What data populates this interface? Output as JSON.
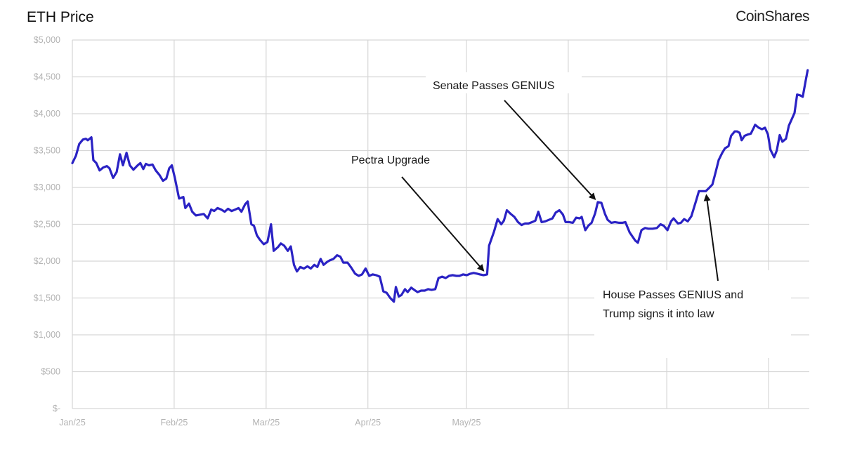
{
  "chart_data": {
    "type": "line",
    "title": "ETH Price",
    "brand": "CoinShares",
    "xlabel": "",
    "ylabel": "",
    "x_unit": "days since Jan 1 2025",
    "xlim": [
      0,
      224.4
    ],
    "ylim": [
      0,
      5000
    ],
    "grid": true,
    "line_color": "#2a22c4",
    "y_ticks": [
      {
        "value": 0,
        "label": "$-"
      },
      {
        "value": 500,
        "label": "$500"
      },
      {
        "value": 1000,
        "label": "$1,000"
      },
      {
        "value": 1500,
        "label": "$1,500"
      },
      {
        "value": 2000,
        "label": "$2,000"
      },
      {
        "value": 2500,
        "label": "$2,500"
      },
      {
        "value": 3000,
        "label": "$3,000"
      },
      {
        "value": 3500,
        "label": "$3,500"
      },
      {
        "value": 4000,
        "label": "$4,000"
      },
      {
        "value": 4500,
        "label": "$4,500"
      },
      {
        "value": 5000,
        "label": "$5,000"
      }
    ],
    "x_ticks": [
      {
        "value": 0,
        "label": "Jan/25"
      },
      {
        "value": 31,
        "label": "Feb/25"
      },
      {
        "value": 59,
        "label": "Mar/25"
      },
      {
        "value": 90,
        "label": "Apr/25"
      },
      {
        "value": 120,
        "label": "May/25"
      },
      {
        "value": 151,
        "label": ""
      },
      {
        "value": 181,
        "label": ""
      },
      {
        "value": 212,
        "label": ""
      }
    ],
    "series": [
      {
        "name": "ETH Price",
        "points": [
          [
            0,
            3330
          ],
          [
            1.1,
            3430
          ],
          [
            2.1,
            3590
          ],
          [
            3.2,
            3650
          ],
          [
            4.1,
            3660
          ],
          [
            4.7,
            3640
          ],
          [
            5.8,
            3680
          ],
          [
            6.4,
            3370
          ],
          [
            7.3,
            3330
          ],
          [
            8.3,
            3230
          ],
          [
            9.4,
            3270
          ],
          [
            10.5,
            3290
          ],
          [
            11.3,
            3260
          ],
          [
            12.4,
            3130
          ],
          [
            13.5,
            3210
          ],
          [
            14.5,
            3450
          ],
          [
            15.4,
            3300
          ],
          [
            16.5,
            3470
          ],
          [
            17.5,
            3300
          ],
          [
            18.6,
            3240
          ],
          [
            19.9,
            3300
          ],
          [
            20.7,
            3330
          ],
          [
            21.6,
            3250
          ],
          [
            22.4,
            3320
          ],
          [
            23.3,
            3300
          ],
          [
            24.4,
            3310
          ],
          [
            25.4,
            3230
          ],
          [
            26.5,
            3170
          ],
          [
            27.6,
            3090
          ],
          [
            28.6,
            3120
          ],
          [
            29.5,
            3260
          ],
          [
            30.3,
            3300
          ],
          [
            31.2,
            3130
          ],
          [
            32.5,
            2850
          ],
          [
            33.8,
            2870
          ],
          [
            34.4,
            2720
          ],
          [
            35.5,
            2780
          ],
          [
            36.5,
            2670
          ],
          [
            37.6,
            2620
          ],
          [
            38.9,
            2630
          ],
          [
            40.0,
            2640
          ],
          [
            41.2,
            2580
          ],
          [
            42.3,
            2700
          ],
          [
            43.2,
            2680
          ],
          [
            44.2,
            2720
          ],
          [
            45.3,
            2700
          ],
          [
            46.4,
            2670
          ],
          [
            47.4,
            2710
          ],
          [
            48.5,
            2680
          ],
          [
            49.6,
            2700
          ],
          [
            50.6,
            2720
          ],
          [
            51.5,
            2670
          ],
          [
            52.6,
            2770
          ],
          [
            53.4,
            2810
          ],
          [
            54.5,
            2500
          ],
          [
            55.3,
            2480
          ],
          [
            56.2,
            2350
          ],
          [
            57.1,
            2290
          ],
          [
            58.3,
            2230
          ],
          [
            59.4,
            2260
          ],
          [
            60.5,
            2500
          ],
          [
            61.3,
            2140
          ],
          [
            62.6,
            2190
          ],
          [
            63.5,
            2240
          ],
          [
            64.5,
            2210
          ],
          [
            65.6,
            2140
          ],
          [
            66.5,
            2200
          ],
          [
            67.5,
            1950
          ],
          [
            68.4,
            1860
          ],
          [
            69.4,
            1920
          ],
          [
            70.5,
            1900
          ],
          [
            71.6,
            1930
          ],
          [
            72.6,
            1900
          ],
          [
            73.7,
            1950
          ],
          [
            74.6,
            1920
          ],
          [
            75.6,
            2030
          ],
          [
            76.5,
            1950
          ],
          [
            77.6,
            1990
          ],
          [
            78.4,
            2010
          ],
          [
            79.5,
            2030
          ],
          [
            80.6,
            2080
          ],
          [
            81.6,
            2060
          ],
          [
            82.5,
            1980
          ],
          [
            83.8,
            1980
          ],
          [
            84.8,
            1920
          ],
          [
            86.1,
            1830
          ],
          [
            87.2,
            1800
          ],
          [
            88.2,
            1820
          ],
          [
            89.3,
            1900
          ],
          [
            90.4,
            1800
          ],
          [
            91.5,
            1820
          ],
          [
            92.5,
            1810
          ],
          [
            93.6,
            1790
          ],
          [
            94.7,
            1590
          ],
          [
            95.7,
            1570
          ],
          [
            96.8,
            1500
          ],
          [
            97.9,
            1450
          ],
          [
            98.5,
            1650
          ],
          [
            99.4,
            1520
          ],
          [
            100.2,
            1540
          ],
          [
            101.3,
            1620
          ],
          [
            102.1,
            1580
          ],
          [
            103.2,
            1640
          ],
          [
            104.1,
            1610
          ],
          [
            105.1,
            1580
          ],
          [
            106.2,
            1600
          ],
          [
            107.3,
            1600
          ],
          [
            108.3,
            1620
          ],
          [
            109.4,
            1610
          ],
          [
            110.5,
            1620
          ],
          [
            111.5,
            1770
          ],
          [
            112.6,
            1790
          ],
          [
            113.7,
            1770
          ],
          [
            114.7,
            1800
          ],
          [
            115.8,
            1810
          ],
          [
            116.9,
            1800
          ],
          [
            117.9,
            1800
          ],
          [
            119.0,
            1820
          ],
          [
            120.1,
            1810
          ],
          [
            121.2,
            1830
          ],
          [
            122.2,
            1840
          ],
          [
            123.3,
            1830
          ],
          [
            124.1,
            1820
          ],
          [
            125.2,
            1810
          ],
          [
            126.3,
            1820
          ],
          [
            126.9,
            2210
          ],
          [
            128.4,
            2400
          ],
          [
            129.5,
            2570
          ],
          [
            130.6,
            2500
          ],
          [
            131.4,
            2550
          ],
          [
            132.3,
            2690
          ],
          [
            133.5,
            2640
          ],
          [
            134.6,
            2600
          ],
          [
            135.7,
            2530
          ],
          [
            136.8,
            2490
          ],
          [
            137.8,
            2510
          ],
          [
            138.9,
            2510
          ],
          [
            140.0,
            2530
          ],
          [
            141.0,
            2550
          ],
          [
            141.9,
            2670
          ],
          [
            142.9,
            2530
          ],
          [
            144.0,
            2540
          ],
          [
            145.1,
            2560
          ],
          [
            146.2,
            2580
          ],
          [
            147.2,
            2660
          ],
          [
            148.3,
            2690
          ],
          [
            149.4,
            2630
          ],
          [
            150.2,
            2530
          ],
          [
            151.3,
            2530
          ],
          [
            152.4,
            2520
          ],
          [
            153.4,
            2590
          ],
          [
            154.5,
            2580
          ],
          [
            155.1,
            2600
          ],
          [
            156.2,
            2420
          ],
          [
            157.1,
            2480
          ],
          [
            158.1,
            2520
          ],
          [
            159.2,
            2650
          ],
          [
            160.0,
            2800
          ],
          [
            161.1,
            2790
          ],
          [
            162.2,
            2640
          ],
          [
            163.0,
            2560
          ],
          [
            164.1,
            2520
          ],
          [
            165.2,
            2530
          ],
          [
            166.5,
            2520
          ],
          [
            167.5,
            2520
          ],
          [
            168.4,
            2530
          ],
          [
            169.7,
            2390
          ],
          [
            171.4,
            2280
          ],
          [
            172.2,
            2250
          ],
          [
            173.3,
            2420
          ],
          [
            174.4,
            2450
          ],
          [
            175.4,
            2440
          ],
          [
            176.7,
            2440
          ],
          [
            178.0,
            2450
          ],
          [
            179.1,
            2500
          ],
          [
            180.1,
            2480
          ],
          [
            181.2,
            2420
          ],
          [
            182.3,
            2540
          ],
          [
            183.1,
            2580
          ],
          [
            184.4,
            2510
          ],
          [
            185.3,
            2520
          ],
          [
            186.3,
            2570
          ],
          [
            187.4,
            2540
          ],
          [
            188.5,
            2610
          ],
          [
            190.0,
            2830
          ],
          [
            190.8,
            2950
          ],
          [
            191.9,
            2950
          ],
          [
            192.9,
            2950
          ],
          [
            193.8,
            2990
          ],
          [
            194.9,
            3040
          ],
          [
            195.9,
            3210
          ],
          [
            196.8,
            3370
          ],
          [
            197.9,
            3470
          ],
          [
            198.7,
            3530
          ],
          [
            199.8,
            3560
          ],
          [
            200.6,
            3700
          ],
          [
            201.7,
            3760
          ],
          [
            202.4,
            3760
          ],
          [
            203.2,
            3740
          ],
          [
            203.8,
            3640
          ],
          [
            204.7,
            3700
          ],
          [
            205.8,
            3720
          ],
          [
            206.6,
            3730
          ],
          [
            207.5,
            3810
          ],
          [
            207.9,
            3850
          ],
          [
            209.0,
            3810
          ],
          [
            210.0,
            3790
          ],
          [
            210.9,
            3810
          ],
          [
            211.8,
            3720
          ],
          [
            212.6,
            3510
          ],
          [
            213.7,
            3410
          ],
          [
            214.5,
            3500
          ],
          [
            215.4,
            3710
          ],
          [
            216.2,
            3620
          ],
          [
            217.3,
            3660
          ],
          [
            218.2,
            3840
          ],
          [
            219.0,
            3920
          ],
          [
            219.9,
            4010
          ],
          [
            220.7,
            4260
          ],
          [
            221.6,
            4250
          ],
          [
            222.4,
            4230
          ],
          [
            223.3,
            4450
          ],
          [
            223.9,
            4590
          ]
        ]
      }
    ],
    "annotations": [
      {
        "text": "Pectra Upgrade",
        "lines": [
          "Pectra Upgrade"
        ],
        "target": [
          126.0,
          1830
        ]
      },
      {
        "text": "Senate Passes GENIUS",
        "lines": [
          "Senate Passes GENIUS"
        ],
        "target": [
          160.0,
          2800
        ]
      },
      {
        "text": "House Passes GENIUS and Trump signs it into law",
        "lines": [
          "House Passes GENIUS and",
          "Trump signs it into law"
        ],
        "target": [
          192.9,
          2950
        ]
      }
    ]
  }
}
